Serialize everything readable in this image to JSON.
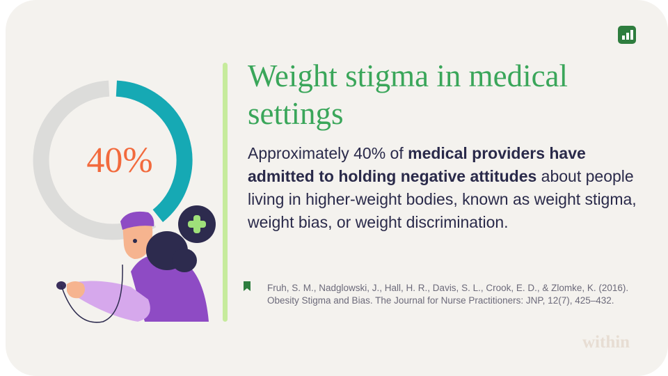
{
  "chart_data": {
    "type": "donut",
    "values": [
      40,
      60
    ],
    "colors": [
      "#16a9b4",
      "#dcdcda"
    ],
    "value_labels": [
      "40%",
      null
    ],
    "label_color": "#f26a3d"
  },
  "title": "Weight stigma in medical settings",
  "body": [
    {
      "text": "Approximately 40% of ",
      "bold": false
    },
    {
      "text": "medical providers have admitted to holding negative attitudes",
      "bold": true
    },
    {
      "text": " about people living in higher-weight bodies, known as weight stigma, weight bias, or weight discrimination.",
      "bold": false
    }
  ],
  "citation": "Fruh, S. M., Nadglowski, J., Hall, H. R., Davis, S. L., Crook, E. D., & Zlomke, K. (2016). Obesity Stigma and Bias. The Journal for Nurse Practitioners: JNP, 12(7), 425–432.",
  "logo": "within"
}
